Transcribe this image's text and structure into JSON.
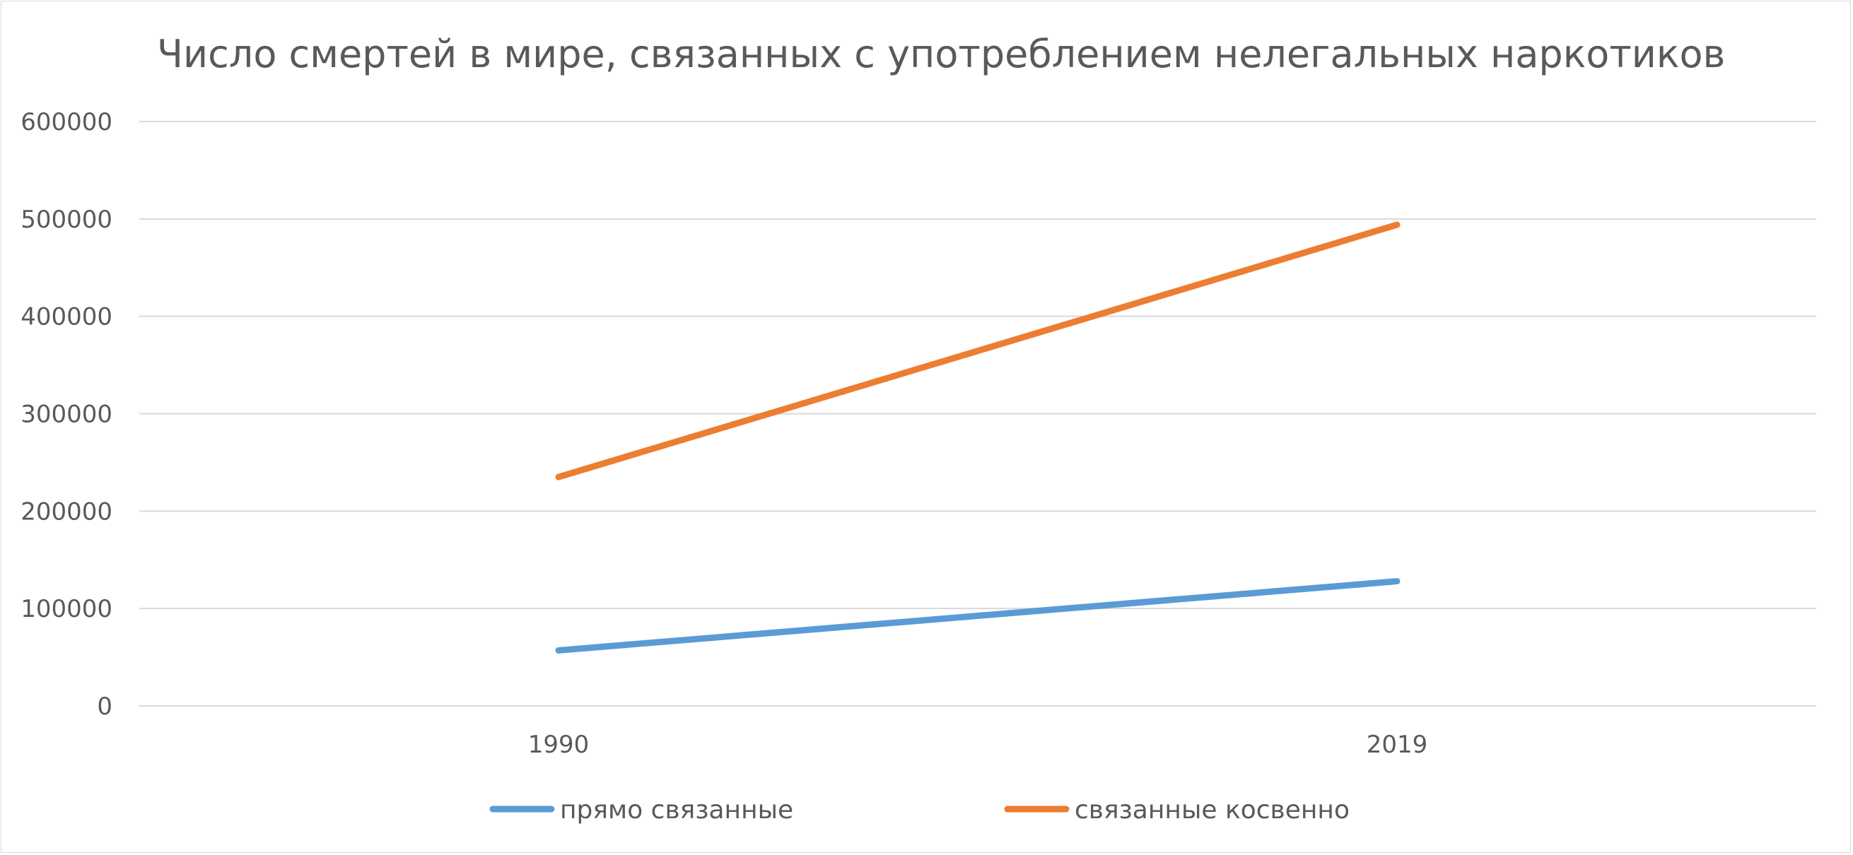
{
  "chart_data": {
    "type": "line",
    "title": "Число смертей в мире, связанных с употреблением нелегальных наркотиков",
    "xlabel": "",
    "ylabel": "",
    "categories": [
      "1990",
      "2019"
    ],
    "ylim": [
      0,
      600000
    ],
    "yticks": [
      0,
      100000,
      200000,
      300000,
      400000,
      500000,
      600000
    ],
    "grid": true,
    "legend_position": "bottom",
    "series": [
      {
        "name": "прямо связанные",
        "color": "#5b9bd5",
        "values": [
          57000,
          128000
        ]
      },
      {
        "name": "связанные косвенно",
        "color": "#ed7d31",
        "values": [
          235000,
          494000
        ]
      }
    ]
  }
}
